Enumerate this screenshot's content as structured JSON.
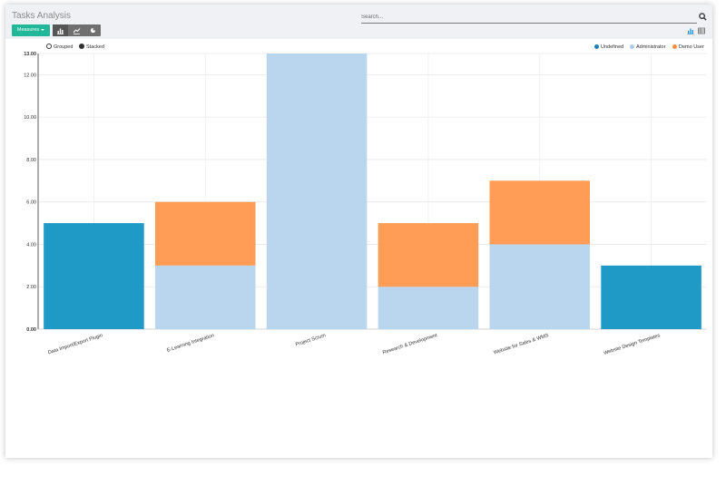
{
  "header": {
    "title": "Tasks Analysis",
    "search_placeholder": "Search...",
    "measures_label": "Measures"
  },
  "icons": {
    "search": "search-icon",
    "bar_chart": "bar-chart-icon",
    "line_chart": "line-chart-icon",
    "pie_chart": "pie-chart-icon",
    "graph_view": "graph-view-icon",
    "pivot_view": "pivot-view-icon"
  },
  "layout_options": {
    "grouped_label": "Grouped",
    "stacked_label": "Stacked",
    "selected": "stacked"
  },
  "legend": [
    {
      "label": "Undefined",
      "color": "#1f9ac6"
    },
    {
      "label": "Administrator",
      "color": "#aecbea"
    },
    {
      "label": "Demo User",
      "color": "#ff8f3f"
    }
  ],
  "chart_data": {
    "type": "bar",
    "stacked": true,
    "categories": [
      "Data Import/Export Plugin",
      "E-Learning Integration",
      "Project Scrum",
      "Research & Development",
      "Website for Sales & WMS",
      "Website Design Templates"
    ],
    "series": [
      {
        "name": "Undefined",
        "color": "#1f9ac6",
        "values": [
          5,
          0,
          0,
          0,
          0,
          3
        ]
      },
      {
        "name": "Administrator",
        "color": "#bad5ee",
        "values": [
          0,
          3,
          13,
          2,
          4,
          0
        ]
      },
      {
        "name": "Demo User",
        "color": "#ff9d57",
        "values": [
          0,
          3,
          0,
          3,
          3,
          0
        ]
      }
    ],
    "y_ticks": [
      "0.00",
      "2.00",
      "4.00",
      "6.00",
      "8.00",
      "10.00",
      "12.00",
      "13.00"
    ],
    "ylim": [
      0,
      13
    ],
    "grid": true,
    "legend_position": "top-right"
  }
}
